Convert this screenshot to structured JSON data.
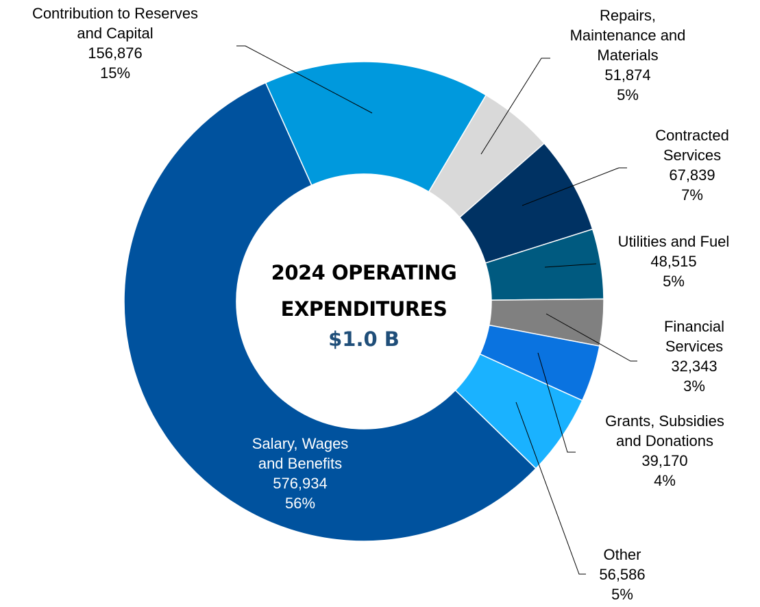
{
  "chart_data": {
    "type": "donut",
    "center_title": "2024 OPERATING\nEXPENDITURES",
    "center_value": "$1.0 B",
    "categories": [
      "Contribution to Reserves\nand Capital",
      "Repairs,\nMaintenance and\nMaterials",
      "Contracted\nServices",
      "Utilities and Fuel",
      "Financial\nServices",
      "Grants, Subsidies\nand Donations",
      "Other",
      "Salary, Wages\nand Benefits"
    ],
    "values": [
      156876,
      51874,
      67839,
      48515,
      32343,
      39170,
      56586,
      576934
    ],
    "value_labels": [
      "156,876",
      "51,874",
      "67,839",
      "48,515",
      "32,343",
      "39,170",
      "56,586",
      "576,934"
    ],
    "percent_labels": [
      "15%",
      "5%",
      "7%",
      "5%",
      "3%",
      "4%",
      "5%",
      "56%"
    ],
    "colors": [
      "#0099dd",
      "#d9d9d9",
      "#003263",
      "#005a80",
      "#808080",
      "#0a73e0",
      "#1ab2ff",
      "#00529e"
    ]
  }
}
